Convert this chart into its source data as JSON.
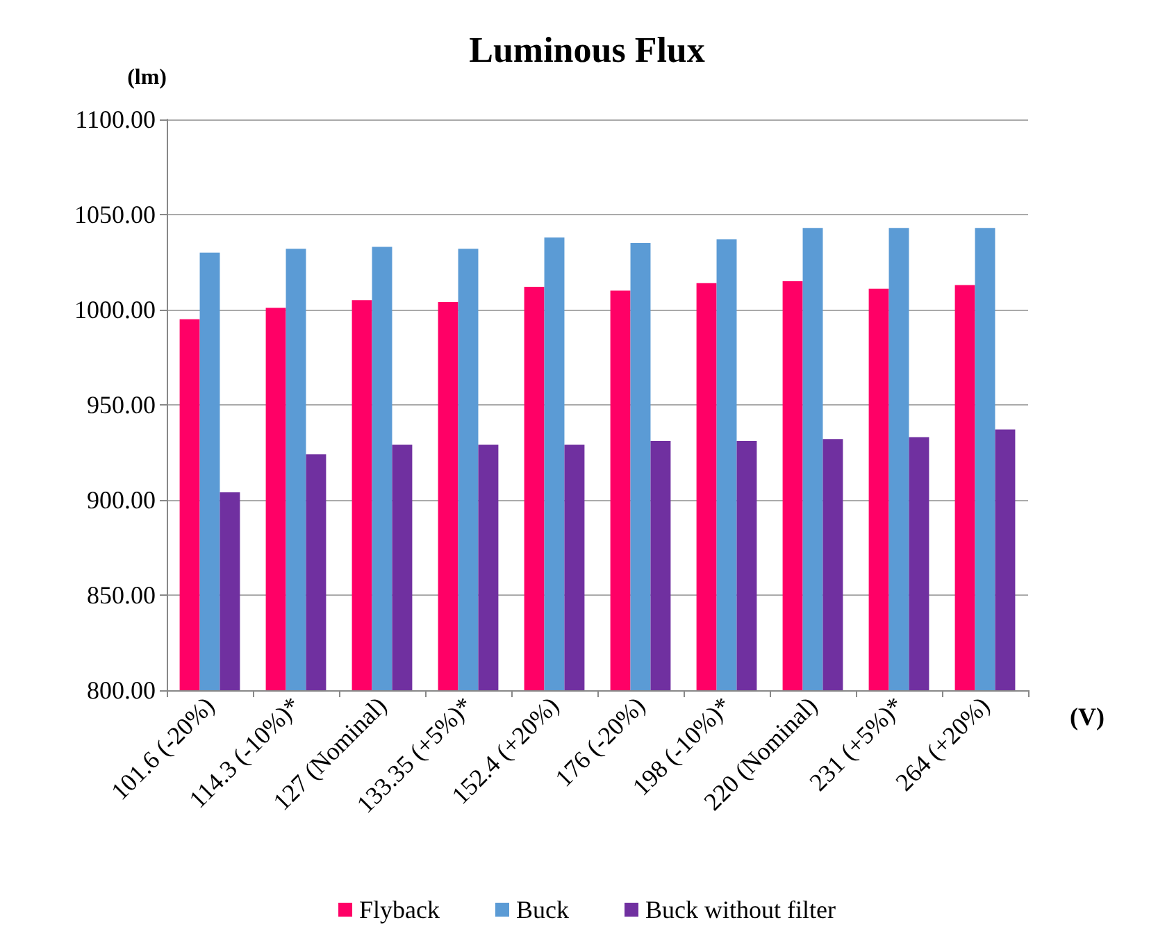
{
  "chart_data": {
    "type": "bar",
    "title": "Luminous Flux",
    "ylabel": "(lm)",
    "xlabel": "(V)",
    "categories": [
      "101.6 (-20%)",
      "114.3 (-10%)*",
      "127 (Nominal)",
      "133.35 (+5%)*",
      "152.4 (+20%)",
      "176 (-20%)",
      "198 (-10%)*",
      "220 (Nominal)",
      "231 (+5%)*",
      "264 (+20%)"
    ],
    "series": [
      {
        "name": "Flyback",
        "color": "#ff0066",
        "values": [
          995,
          1001,
          1005,
          1004,
          1012,
          1010,
          1014,
          1015,
          1011,
          1013
        ]
      },
      {
        "name": "Buck",
        "color": "#5b9bd5",
        "values": [
          1030,
          1032,
          1033,
          1032,
          1038,
          1035,
          1037,
          1043,
          1043,
          1043
        ]
      },
      {
        "name": "Buck without filter",
        "color": "#7030a0",
        "values": [
          904,
          924,
          929,
          929,
          929,
          931,
          931,
          932,
          933,
          937
        ]
      }
    ],
    "ylim": [
      800,
      1100
    ],
    "yticks": [
      {
        "value": 800,
        "label": "800.00"
      },
      {
        "value": 850,
        "label": "850.00"
      },
      {
        "value": 900,
        "label": "900.00"
      },
      {
        "value": 950,
        "label": "950.00"
      },
      {
        "value": 1000,
        "label": "1000.00"
      },
      {
        "value": 1050,
        "label": "1050.00"
      },
      {
        "value": 1100,
        "label": "1100.00"
      }
    ],
    "grid": "y",
    "legend": "bottom"
  }
}
